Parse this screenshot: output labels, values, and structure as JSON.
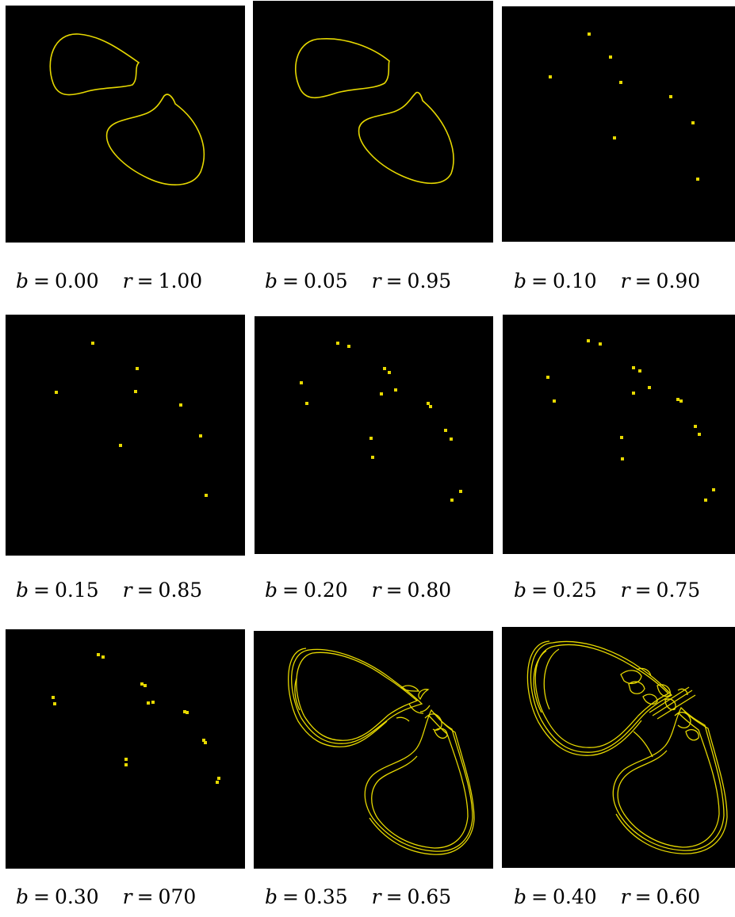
{
  "figure": {
    "curve_color": "#E6D800",
    "background_color": "#000000",
    "panels": [
      {
        "b_label": "b",
        "b_value": "0.00",
        "r_label": "r",
        "r_value": "1.00",
        "kind": "closed-curves"
      },
      {
        "b_label": "b",
        "b_value": "0.05",
        "r_label": "r",
        "r_value": "0.95",
        "kind": "closed-curves"
      },
      {
        "b_label": "b",
        "b_value": "0.10",
        "r_label": "r",
        "r_value": "0.90",
        "kind": "periodic-points"
      },
      {
        "b_label": "b",
        "b_value": "0.15",
        "r_label": "r",
        "r_value": "0.85",
        "kind": "periodic-points"
      },
      {
        "b_label": "b",
        "b_value": "0.20",
        "r_label": "r",
        "r_value": "0.80",
        "kind": "periodic-points"
      },
      {
        "b_label": "b",
        "b_value": "0.25",
        "r_label": "r",
        "r_value": "0.75",
        "kind": "periodic-points"
      },
      {
        "b_label": "b",
        "b_value": "0.30",
        "r_label": "r",
        "r_value": "070",
        "kind": "periodic-points"
      },
      {
        "b_label": "b",
        "b_value": "0.35",
        "r_label": "r",
        "r_value": "0.65",
        "kind": "strange-attractor"
      },
      {
        "b_label": "b",
        "b_value": "0.40",
        "r_label": "r",
        "r_value": "0.60",
        "kind": "strange-attractor"
      }
    ]
  }
}
